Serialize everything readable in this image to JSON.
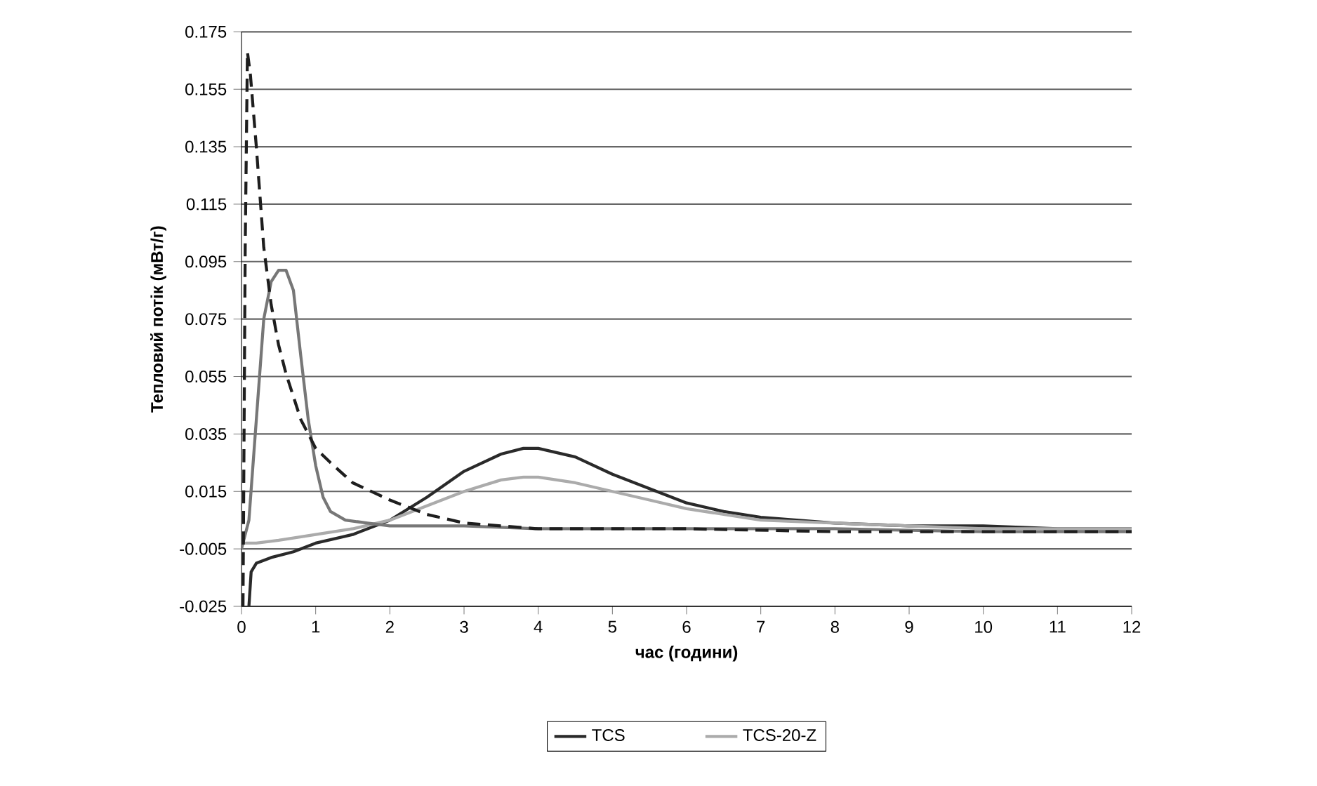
{
  "chart_data": {
    "type": "line",
    "xlabel": "час (години)",
    "ylabel": "Тепловий потік (мВт/г)",
    "xlim": [
      0,
      12
    ],
    "xticks": [
      0,
      1,
      2,
      3,
      4,
      5,
      6,
      7,
      8,
      9,
      10,
      11,
      12
    ],
    "ylim": [
      -0.025,
      0.175
    ],
    "yticks": [
      -0.025,
      -0.005,
      0.015,
      0.035,
      0.055,
      0.075,
      0.095,
      0.115,
      0.135,
      0.155,
      0.175
    ],
    "grid": "y",
    "legend": "bottom",
    "marker": "none",
    "series": [
      {
        "name": "TCS",
        "color": "#2a2a2a",
        "line_style": "solid",
        "x": [
          0.1,
          0.13,
          0.2,
          0.4,
          0.7,
          1.0,
          1.5,
          2.0,
          2.5,
          3.0,
          3.5,
          3.8,
          4.0,
          4.5,
          5.0,
          5.5,
          6.0,
          6.5,
          7.0,
          8.0,
          9.0,
          10.0,
          11.0,
          12.0
        ],
        "values": [
          -0.025,
          -0.013,
          -0.01,
          -0.008,
          -0.006,
          -0.003,
          0.0,
          0.005,
          0.013,
          0.022,
          0.028,
          0.03,
          0.03,
          0.027,
          0.021,
          0.016,
          0.011,
          0.008,
          0.006,
          0.004,
          0.003,
          0.003,
          0.002,
          0.002
        ]
      },
      {
        "name": "TCS-20-Z",
        "color": "#ababab",
        "line_style": "solid",
        "x": [
          0.0,
          0.2,
          0.5,
          1.0,
          1.5,
          2.0,
          2.5,
          3.0,
          3.5,
          3.8,
          4.0,
          4.5,
          5.0,
          5.5,
          6.0,
          6.5,
          7.0,
          8.0,
          9.0,
          10.0,
          11.0,
          12.0
        ],
        "values": [
          -0.003,
          -0.003,
          -0.002,
          0.0,
          0.002,
          0.005,
          0.01,
          0.015,
          0.019,
          0.02,
          0.02,
          0.018,
          0.015,
          0.012,
          0.009,
          0.007,
          0.005,
          0.004,
          0.003,
          0.002,
          0.002,
          0.002
        ]
      },
      {
        "color": "#777777",
        "line_style": "solid",
        "x": [
          0.0,
          0.1,
          0.2,
          0.3,
          0.4,
          0.5,
          0.6,
          0.7,
          0.8,
          0.9,
          1.0,
          1.1,
          1.2,
          1.4,
          1.7,
          2.0,
          3.0,
          4.0,
          6.0,
          8.0,
          10.0,
          12.0
        ],
        "values": [
          -0.005,
          0.005,
          0.04,
          0.075,
          0.088,
          0.092,
          0.092,
          0.085,
          0.062,
          0.04,
          0.024,
          0.013,
          0.008,
          0.005,
          0.004,
          0.003,
          0.003,
          0.002,
          0.002,
          0.002,
          0.001,
          0.001
        ]
      },
      {
        "color": "#1e1e1e",
        "line_style": "dashed",
        "x": [
          0.02,
          0.05,
          0.08,
          0.12,
          0.2,
          0.3,
          0.4,
          0.5,
          0.6,
          0.8,
          1.0,
          1.2,
          1.5,
          2.0,
          2.5,
          3.0,
          3.5,
          4.0,
          5.0,
          6.0,
          8.0,
          10.0,
          12.0
        ],
        "values": [
          -0.025,
          0.1,
          0.168,
          0.16,
          0.135,
          0.1,
          0.08,
          0.066,
          0.056,
          0.04,
          0.03,
          0.025,
          0.018,
          0.012,
          0.007,
          0.004,
          0.003,
          0.002,
          0.002,
          0.002,
          0.001,
          0.001,
          0.001
        ]
      }
    ]
  }
}
